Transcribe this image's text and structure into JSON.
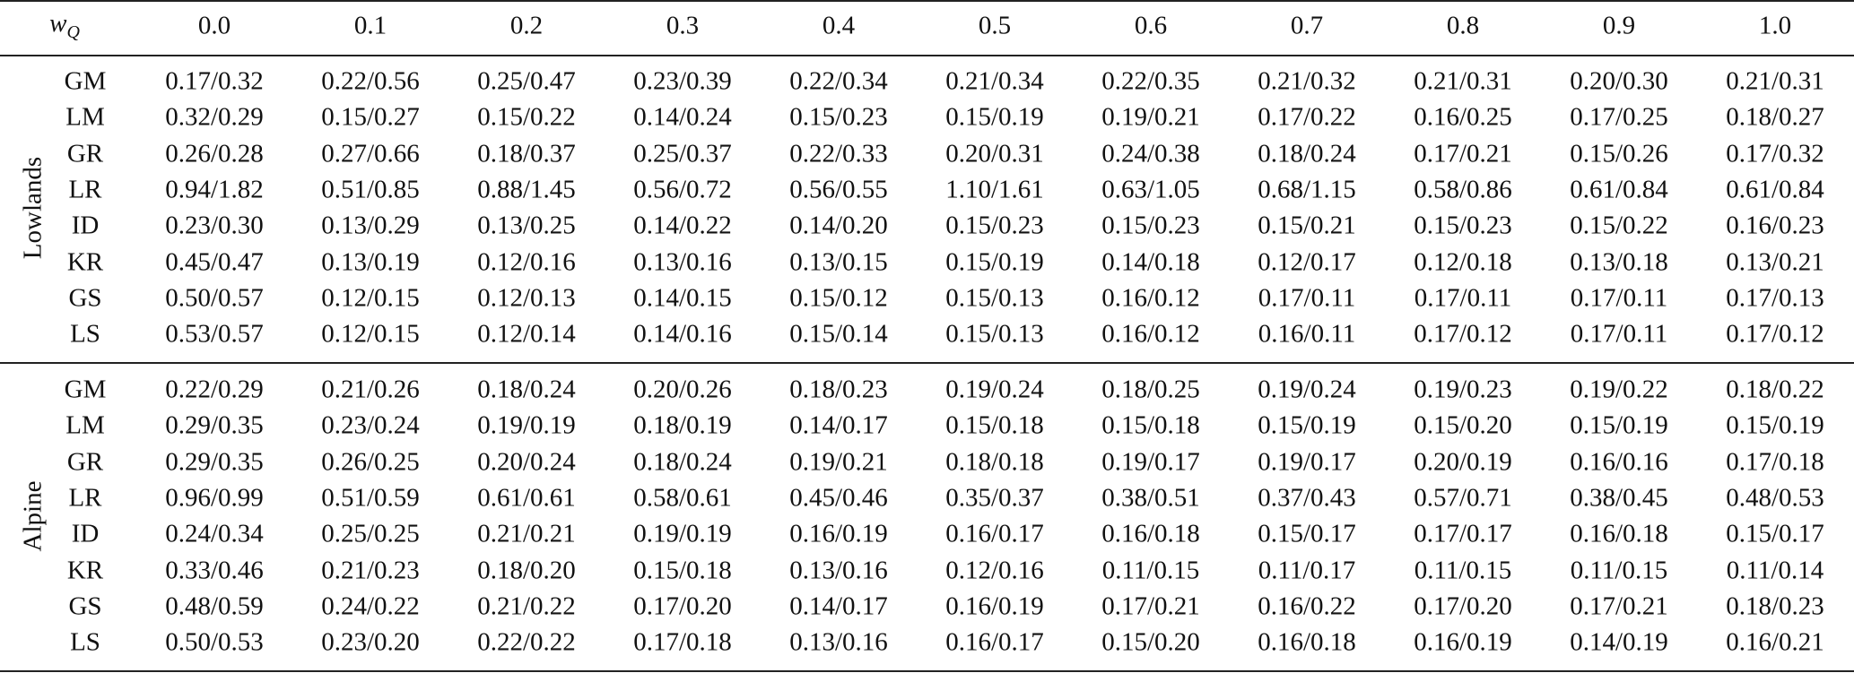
{
  "table": {
    "header": {
      "label": "w",
      "label_sub": "Q",
      "columns": [
        "0.0",
        "0.1",
        "0.2",
        "0.3",
        "0.4",
        "0.5",
        "0.6",
        "0.7",
        "0.8",
        "0.9",
        "1.0"
      ]
    },
    "groups": [
      {
        "name": "Lowlands",
        "rows": [
          {
            "method": "GM",
            "cells": [
              "0.17/0.32",
              "0.22/0.56",
              "0.25/0.47",
              "0.23/0.39",
              "0.22/0.34",
              "0.21/0.34",
              "0.22/0.35",
              "0.21/0.32",
              "0.21/0.31",
              "0.20/0.30",
              "0.21/0.31"
            ]
          },
          {
            "method": "LM",
            "cells": [
              "0.32/0.29",
              "0.15/0.27",
              "0.15/0.22",
              "0.14/0.24",
              "0.15/0.23",
              "0.15/0.19",
              "0.19/0.21",
              "0.17/0.22",
              "0.16/0.25",
              "0.17/0.25",
              "0.18/0.27"
            ]
          },
          {
            "method": "GR",
            "cells": [
              "0.26/0.28",
              "0.27/0.66",
              "0.18/0.37",
              "0.25/0.37",
              "0.22/0.33",
              "0.20/0.31",
              "0.24/0.38",
              "0.18/0.24",
              "0.17/0.21",
              "0.15/0.26",
              "0.17/0.32"
            ]
          },
          {
            "method": "LR",
            "cells": [
              "0.94/1.82",
              "0.51/0.85",
              "0.88/1.45",
              "0.56/0.72",
              "0.56/0.55",
              "1.10/1.61",
              "0.63/1.05",
              "0.68/1.15",
              "0.58/0.86",
              "0.61/0.84",
              "0.61/0.84"
            ]
          },
          {
            "method": "ID",
            "cells": [
              "0.23/0.30",
              "0.13/0.29",
              "0.13/0.25",
              "0.14/0.22",
              "0.14/0.20",
              "0.15/0.23",
              "0.15/0.23",
              "0.15/0.21",
              "0.15/0.23",
              "0.15/0.22",
              "0.16/0.23"
            ]
          },
          {
            "method": "KR",
            "cells": [
              "0.45/0.47",
              "0.13/0.19",
              "0.12/0.16",
              "0.13/0.16",
              "0.13/0.15",
              "0.15/0.19",
              "0.14/0.18",
              "0.12/0.17",
              "0.12/0.18",
              "0.13/0.18",
              "0.13/0.21"
            ]
          },
          {
            "method": "GS",
            "cells": [
              "0.50/0.57",
              "0.12/0.15",
              "0.12/0.13",
              "0.14/0.15",
              "0.15/0.12",
              "0.15/0.13",
              "0.16/0.12",
              "0.17/0.11",
              "0.17/0.11",
              "0.17/0.11",
              "0.17/0.13"
            ]
          },
          {
            "method": "LS",
            "cells": [
              "0.53/0.57",
              "0.12/0.15",
              "0.12/0.14",
              "0.14/0.16",
              "0.15/0.14",
              "0.15/0.13",
              "0.16/0.12",
              "0.16/0.11",
              "0.17/0.12",
              "0.17/0.11",
              "0.17/0.12"
            ]
          }
        ]
      },
      {
        "name": "Alpine",
        "rows": [
          {
            "method": "GM",
            "cells": [
              "0.22/0.29",
              "0.21/0.26",
              "0.18/0.24",
              "0.20/0.26",
              "0.18/0.23",
              "0.19/0.24",
              "0.18/0.25",
              "0.19/0.24",
              "0.19/0.23",
              "0.19/0.22",
              "0.18/0.22"
            ]
          },
          {
            "method": "LM",
            "cells": [
              "0.29/0.35",
              "0.23/0.24",
              "0.19/0.19",
              "0.18/0.19",
              "0.14/0.17",
              "0.15/0.18",
              "0.15/0.18",
              "0.15/0.19",
              "0.15/0.20",
              "0.15/0.19",
              "0.15/0.19"
            ]
          },
          {
            "method": "GR",
            "cells": [
              "0.29/0.35",
              "0.26/0.25",
              "0.20/0.24",
              "0.18/0.24",
              "0.19/0.21",
              "0.18/0.18",
              "0.19/0.17",
              "0.19/0.17",
              "0.20/0.19",
              "0.16/0.16",
              "0.17/0.18"
            ]
          },
          {
            "method": "LR",
            "cells": [
              "0.96/0.99",
              "0.51/0.59",
              "0.61/0.61",
              "0.58/0.61",
              "0.45/0.46",
              "0.35/0.37",
              "0.38/0.51",
              "0.37/0.43",
              "0.57/0.71",
              "0.38/0.45",
              "0.48/0.53"
            ]
          },
          {
            "method": "ID",
            "cells": [
              "0.24/0.34",
              "0.25/0.25",
              "0.21/0.21",
              "0.19/0.19",
              "0.16/0.19",
              "0.16/0.17",
              "0.16/0.18",
              "0.15/0.17",
              "0.17/0.17",
              "0.16/0.18",
              "0.15/0.17"
            ]
          },
          {
            "method": "KR",
            "cells": [
              "0.33/0.46",
              "0.21/0.23",
              "0.18/0.20",
              "0.15/0.18",
              "0.13/0.16",
              "0.12/0.16",
              "0.11/0.15",
              "0.11/0.17",
              "0.11/0.15",
              "0.11/0.15",
              "0.11/0.14"
            ]
          },
          {
            "method": "GS",
            "cells": [
              "0.48/0.59",
              "0.24/0.22",
              "0.21/0.22",
              "0.17/0.20",
              "0.14/0.17",
              "0.16/0.19",
              "0.17/0.21",
              "0.16/0.22",
              "0.17/0.20",
              "0.17/0.21",
              "0.18/0.23"
            ]
          },
          {
            "method": "LS",
            "cells": [
              "0.50/0.53",
              "0.23/0.20",
              "0.22/0.22",
              "0.17/0.18",
              "0.13/0.16",
              "0.16/0.17",
              "0.15/0.20",
              "0.16/0.18",
              "0.16/0.19",
              "0.14/0.19",
              "0.16/0.21"
            ]
          }
        ]
      }
    ]
  }
}
